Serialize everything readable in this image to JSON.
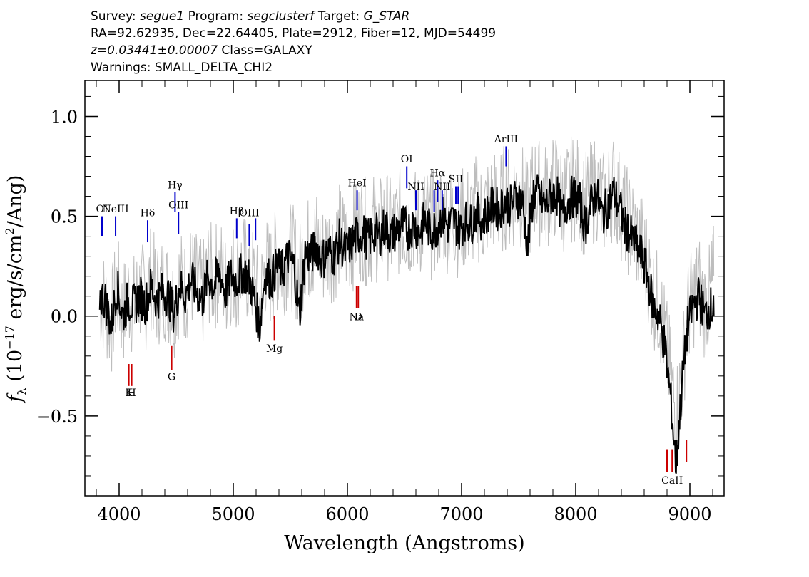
{
  "header": {
    "survey_label": "Survey:",
    "survey": "segue1",
    "program_label": "Program:",
    "program": "segclusterf",
    "target_label": "Target:",
    "target": "G_STAR",
    "line2": "RA=92.62935, Dec=22.64405, Plate=2912, Fiber=12, MJD=54499",
    "redshift": "z=0.03441±0.00007",
    "class": "Class=GALAXY",
    "warnings": "Warnings: SMALL_DELTA_CHI2"
  },
  "chart_data": {
    "type": "line",
    "xlabel": "Wavelength (Angstroms)",
    "ylabel": "f_λ (10^-17 erg/s/cm^2/Ang)",
    "xlim": [
      3700,
      9300
    ],
    "ylim": [
      -0.9,
      1.18
    ],
    "xticks": [
      4000,
      5000,
      6000,
      7000,
      8000,
      9000
    ],
    "yticks": [
      -0.5,
      0.0,
      0.5,
      1.0
    ],
    "ytick_labels": [
      "−0.5",
      "0.0",
      "0.5",
      "1.0"
    ],
    "series": [
      {
        "role": "raw flux",
        "color": "#bdbdbd",
        "x": [
          3830,
          3880,
          3930,
          3980,
          4030,
          4080,
          4130,
          4180,
          4230,
          4280,
          4330,
          4380,
          4430,
          4480,
          4530,
          4580,
          4630,
          4680,
          4730,
          4780,
          4830,
          4880,
          4930,
          4980,
          5030,
          5080,
          5130,
          5180,
          5230,
          5280,
          5330,
          5380,
          5430,
          5480,
          5530,
          5580,
          5630,
          5680,
          5730,
          5780,
          5830,
          5880,
          5930,
          5980,
          6030,
          6080,
          6130,
          6180,
          6230,
          6280,
          6330,
          6380,
          6430,
          6480,
          6530,
          6580,
          6630,
          6680,
          6730,
          6780,
          6830,
          6880,
          6930,
          6980,
          7030,
          7080,
          7130,
          7180,
          7230,
          7280,
          7330,
          7380,
          7430,
          7480,
          7530,
          7580,
          7630,
          7680,
          7730,
          7780,
          7830,
          7880,
          7930,
          7980,
          8030,
          8080,
          8130,
          8180,
          8230,
          8280,
          8330,
          8380,
          8430,
          8480,
          8530,
          8580,
          8630,
          8680,
          8730,
          8780,
          8830,
          8880,
          8930,
          8980,
          9030,
          9080,
          9130,
          9180,
          9210
        ],
        "y": [
          0.1,
          0.05,
          -0.05,
          0.15,
          0.0,
          0.1,
          0.05,
          0.12,
          0.08,
          0.2,
          0.1,
          0.15,
          0.12,
          0.05,
          0.18,
          0.12,
          0.2,
          0.15,
          0.1,
          0.22,
          0.18,
          0.25,
          0.15,
          0.22,
          0.2,
          0.25,
          0.22,
          0.18,
          0.05,
          0.25,
          0.2,
          0.28,
          0.25,
          0.32,
          0.28,
          0.2,
          0.35,
          0.32,
          0.38,
          0.3,
          0.35,
          0.33,
          0.4,
          0.35,
          0.38,
          0.42,
          0.45,
          0.4,
          0.45,
          0.42,
          0.48,
          0.42,
          0.45,
          0.48,
          0.45,
          0.48,
          0.45,
          0.5,
          0.45,
          0.48,
          0.52,
          0.48,
          0.5,
          0.45,
          0.5,
          0.48,
          0.55,
          0.5,
          0.55,
          0.58,
          0.55,
          0.6,
          0.58,
          0.62,
          0.6,
          0.5,
          0.65,
          0.62,
          0.6,
          0.62,
          0.65,
          0.58,
          0.6,
          0.65,
          0.62,
          0.55,
          0.6,
          0.65,
          0.55,
          0.6,
          0.65,
          0.58,
          0.5,
          0.45,
          0.4,
          0.35,
          0.25,
          0.1,
          0.05,
          -0.1,
          -0.3,
          -0.5,
          -0.3,
          0.0,
          0.1,
          0.15,
          0.05,
          0.1,
          0.2
        ]
      },
      {
        "role": "smoothed flux",
        "color": "#000000",
        "x": [
          3830,
          3880,
          3930,
          3980,
          4030,
          4080,
          4130,
          4180,
          4230,
          4280,
          4330,
          4380,
          4430,
          4480,
          4530,
          4580,
          4630,
          4680,
          4730,
          4780,
          4830,
          4880,
          4930,
          4980,
          5030,
          5080,
          5130,
          5180,
          5230,
          5280,
          5330,
          5380,
          5430,
          5480,
          5530,
          5580,
          5630,
          5680,
          5730,
          5780,
          5830,
          5880,
          5930,
          5980,
          6030,
          6080,
          6130,
          6180,
          6230,
          6280,
          6330,
          6380,
          6430,
          6480,
          6530,
          6580,
          6630,
          6680,
          6730,
          6780,
          6830,
          6880,
          6930,
          6980,
          7030,
          7080,
          7130,
          7180,
          7230,
          7280,
          7330,
          7380,
          7430,
          7480,
          7530,
          7580,
          7630,
          7680,
          7730,
          7780,
          7830,
          7880,
          7930,
          7980,
          8030,
          8080,
          8130,
          8180,
          8230,
          8280,
          8330,
          8380,
          8430,
          8480,
          8530,
          8580,
          8630,
          8680,
          8730,
          8780,
          8830,
          8880,
          8930,
          8980,
          9030,
          9080,
          9130,
          9180,
          9210
        ],
        "y": [
          0.1,
          0.08,
          -0.05,
          0.15,
          0.0,
          0.08,
          0.05,
          0.1,
          0.06,
          0.15,
          0.08,
          0.12,
          0.1,
          0.02,
          0.15,
          0.1,
          0.18,
          0.12,
          0.08,
          0.2,
          0.15,
          0.22,
          0.12,
          0.2,
          0.18,
          0.22,
          0.2,
          0.1,
          -0.05,
          0.22,
          0.18,
          0.25,
          0.22,
          0.3,
          0.25,
          0.0,
          0.32,
          0.3,
          0.35,
          0.28,
          0.33,
          0.3,
          0.38,
          0.32,
          0.36,
          0.4,
          0.42,
          0.38,
          0.42,
          0.4,
          0.45,
          0.4,
          0.43,
          0.46,
          0.43,
          0.46,
          0.42,
          0.48,
          0.42,
          0.45,
          0.5,
          0.45,
          0.48,
          0.43,
          0.48,
          0.46,
          0.52,
          0.48,
          0.52,
          0.55,
          0.53,
          0.58,
          0.55,
          0.6,
          0.58,
          0.35,
          0.62,
          0.6,
          0.55,
          0.6,
          0.62,
          0.5,
          0.58,
          0.6,
          0.58,
          0.45,
          0.55,
          0.62,
          0.5,
          0.55,
          0.62,
          0.55,
          0.45,
          0.4,
          0.35,
          0.3,
          0.2,
          0.05,
          0.0,
          -0.15,
          -0.4,
          -0.75,
          -0.35,
          -0.05,
          0.05,
          0.1,
          0.0,
          0.05,
          0.0
        ]
      }
    ],
    "lines": [
      {
        "label": "OI",
        "x": 3850,
        "color": "#0000cc",
        "y0": 0.5,
        "y1": 0.4,
        "label_y": 0.52
      },
      {
        "label": "NeIII",
        "x": 3969,
        "color": "#0000cc",
        "y0": 0.5,
        "y1": 0.4,
        "label_y": 0.52
      },
      {
        "label": "Hδ",
        "x": 4250,
        "color": "#0000cc",
        "y0": 0.48,
        "y1": 0.37,
        "label_y": 0.5
      },
      {
        "label": "Hγ",
        "x": 4490,
        "color": "#0000cc",
        "y0": 0.62,
        "y1": 0.52,
        "label_y": 0.64
      },
      {
        "label": "OIII",
        "x": 4520,
        "color": "#0000cc",
        "y0": 0.52,
        "y1": 0.41,
        "label_y": 0.54
      },
      {
        "label": "Hβ",
        "x": 5030,
        "color": "#0000cc",
        "y0": 0.49,
        "y1": 0.39,
        "label_y": 0.51
      },
      {
        "label": "OIII",
        "x": 5140,
        "color": "#0000cc",
        "y0": 0.46,
        "y1": 0.35,
        "label_y": 0.5
      },
      {
        "label": "",
        "x": 5195,
        "color": "#0000cc",
        "y0": 0.49,
        "y1": 0.38,
        "label_y": 0.5
      },
      {
        "label": "HeI",
        "x": 6085,
        "color": "#0000cc",
        "y0": 0.63,
        "y1": 0.53,
        "label_y": 0.65
      },
      {
        "label": "OI",
        "x": 6520,
        "color": "#0000cc",
        "y0": 0.75,
        "y1": 0.64,
        "label_y": 0.77
      },
      {
        "label": "NII",
        "x": 6600,
        "color": "#0000cc",
        "y0": 0.63,
        "y1": 0.53,
        "label_y": 0.63
      },
      {
        "label": "Hα",
        "x": 6790,
        "color": "#0000cc",
        "y0": 0.68,
        "y1": 0.57,
        "label_y": 0.7
      },
      {
        "label": "",
        "x": 6760,
        "color": "#0000cc",
        "y0": 0.63,
        "y1": 0.52,
        "label_y": 0.63
      },
      {
        "label": "NII",
        "x": 6830,
        "color": "#0000cc",
        "y0": 0.63,
        "y1": 0.53,
        "label_y": 0.63
      },
      {
        "label": "SII",
        "x": 6950,
        "color": "#0000cc",
        "y0": 0.65,
        "y1": 0.56,
        "label_y": 0.67
      },
      {
        "label": "",
        "x": 6970,
        "color": "#0000cc",
        "y0": 0.65,
        "y1": 0.56,
        "label_y": 0.67
      },
      {
        "label": "ArIII",
        "x": 7390,
        "color": "#0000cc",
        "y0": 0.85,
        "y1": 0.75,
        "label_y": 0.87
      },
      {
        "label": "K",
        "x": 4085,
        "color": "#cc0000",
        "y0": -0.24,
        "y1": -0.35,
        "label_y": -0.4
      },
      {
        "label": "H",
        "x": 4110,
        "color": "#cc0000",
        "y0": -0.24,
        "y1": -0.35,
        "label_y": -0.4
      },
      {
        "label": "G",
        "x": 4460,
        "color": "#cc0000",
        "y0": -0.15,
        "y1": -0.27,
        "label_y": -0.32
      },
      {
        "label": "Mg",
        "x": 5360,
        "color": "#cc0000",
        "y0": 0.0,
        "y1": -0.12,
        "label_y": -0.18
      },
      {
        "label": "Na",
        "x": 6080,
        "color": "#cc0000",
        "y0": 0.15,
        "y1": 0.04,
        "label_y": -0.02
      },
      {
        "label": "D",
        "x": 6095,
        "color": "#cc0000",
        "y0": 0.15,
        "y1": 0.04,
        "label_y": -0.02
      },
      {
        "label": "",
        "x": 8800,
        "color": "#cc0000",
        "y0": -0.67,
        "y1": -0.78,
        "label_y": -0.84
      },
      {
        "label": "CaII",
        "x": 8845,
        "color": "#cc0000",
        "y0": -0.67,
        "y1": -0.78,
        "label_y": -0.84
      },
      {
        "label": "",
        "x": 8970,
        "color": "#cc0000",
        "y0": -0.62,
        "y1": -0.73,
        "label_y": -0.84
      }
    ]
  }
}
